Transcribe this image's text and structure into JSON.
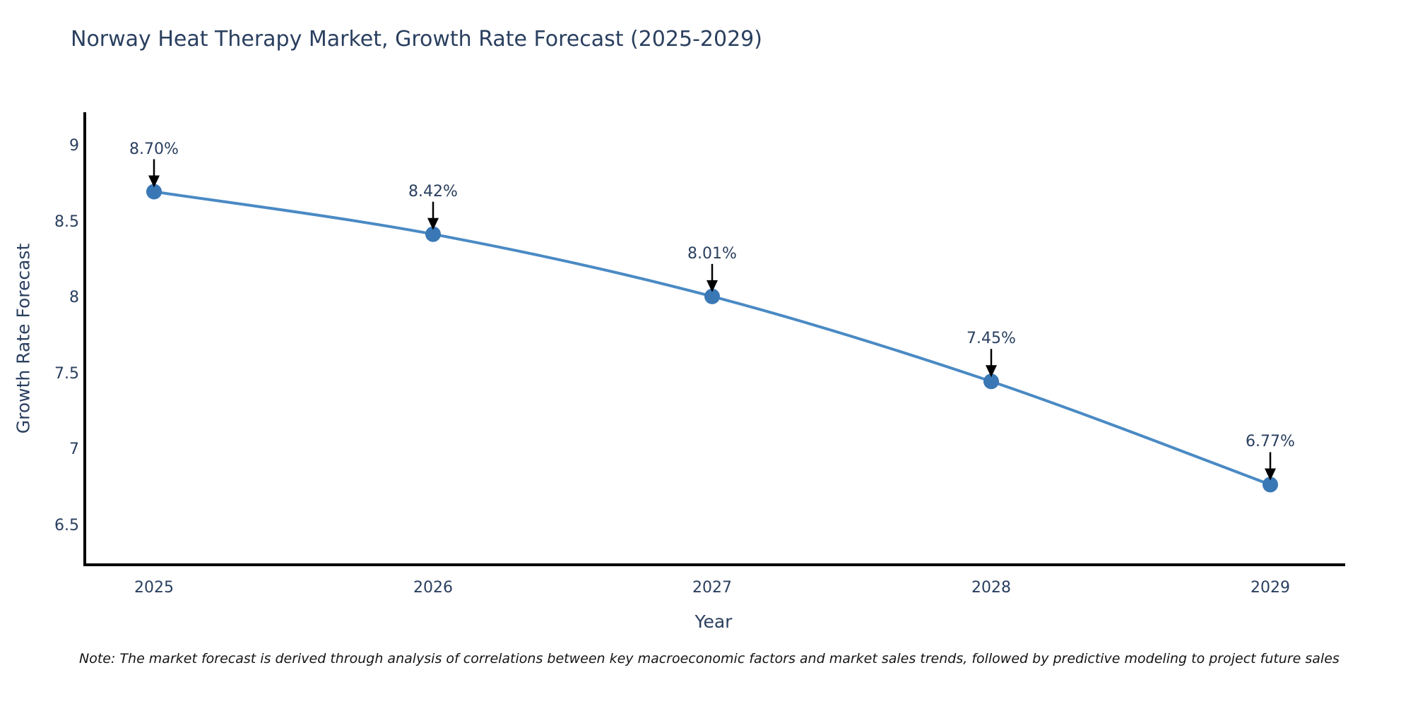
{
  "chart_data": {
    "type": "line",
    "title": "Norway Heat Therapy Market, Growth Rate Forecast (2025-2029)",
    "xlabel": "Year",
    "ylabel": "Growth Rate Forecast",
    "x": [
      2025,
      2026,
      2027,
      2028,
      2029
    ],
    "values": [
      8.7,
      8.42,
      8.01,
      7.45,
      6.77
    ],
    "point_labels": [
      "8.70%",
      "8.42%",
      "8.01%",
      "7.45%",
      "6.77%"
    ],
    "yticks": [
      9,
      8.5,
      8,
      7.5,
      7,
      6.5
    ],
    "ytick_labels": [
      "9",
      "8.5",
      "8",
      "7.5",
      "7",
      "6.5"
    ],
    "xtick_labels": [
      "2025",
      "2026",
      "2027",
      "2028",
      "2029"
    ],
    "ylim": [
      6.24,
      9.22
    ],
    "grid": false,
    "legend": "none",
    "note": "Note: The market forecast is derived through analysis of correlations between key macroeconomic factors and market sales trends, followed by predictive modeling to project future sales",
    "colors": {
      "line": "#4a8ac4",
      "marker": "#3a78b5",
      "axis": "#000000",
      "text": "#2a3f5f",
      "annotation_arrow": "#000000",
      "background": "#ffffff"
    }
  }
}
